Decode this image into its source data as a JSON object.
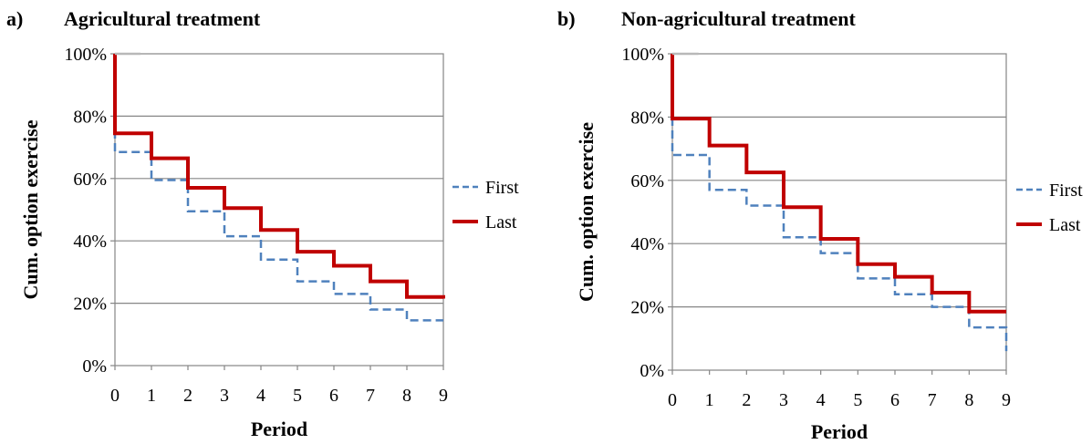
{
  "chart_data": [
    {
      "type": "line",
      "step": true,
      "panel_label": "a)",
      "title": "Agricultural treatment",
      "xlabel": "Period",
      "ylabel": "Cum. option exercise",
      "x": [
        0,
        1,
        2,
        3,
        4,
        5,
        6,
        7,
        8,
        9
      ],
      "x_tick_labels": [
        "0",
        "1",
        "2",
        "3",
        "4",
        "5",
        "6",
        "7",
        "8",
        "9"
      ],
      "y_tick_labels": [
        "0%",
        "20%",
        "40%",
        "60%",
        "80%",
        "100%"
      ],
      "ylim": [
        0,
        100
      ],
      "xlim": [
        0,
        9
      ],
      "grid": true,
      "legend_position": "right",
      "series": [
        {
          "name": "First",
          "style": "dashed",
          "color": "#4F81BD",
          "values": [
            68.5,
            59.5,
            49.5,
            41.5,
            34,
            27,
            23,
            18,
            14.5,
            14.5
          ]
        },
        {
          "name": "Last",
          "style": "solid",
          "color": "#C00000",
          "values": [
            74.5,
            66.5,
            57,
            50.5,
            43.5,
            36.5,
            32,
            27,
            22,
            21.5
          ]
        }
      ]
    },
    {
      "type": "line",
      "step": true,
      "panel_label": "b)",
      "title": "Non-agricultural treatment",
      "xlabel": "Period",
      "ylabel": "Cum. option exercise",
      "x": [
        0,
        1,
        2,
        3,
        4,
        5,
        6,
        7,
        8,
        9
      ],
      "x_tick_labels": [
        "0",
        "1",
        "2",
        "3",
        "4",
        "5",
        "6",
        "7",
        "8",
        "9"
      ],
      "y_tick_labels": [
        "0%",
        "20%",
        "40%",
        "60%",
        "80%",
        "100%"
      ],
      "ylim": [
        0,
        100
      ],
      "xlim": [
        0,
        9
      ],
      "grid": true,
      "legend_position": "right",
      "series": [
        {
          "name": "First",
          "style": "dashed",
          "color": "#4F81BD",
          "values": [
            68,
            57,
            52,
            42,
            37,
            29,
            24,
            20,
            13.5,
            6
          ]
        },
        {
          "name": "Last",
          "style": "solid",
          "color": "#C00000",
          "values": [
            79.5,
            71,
            62.5,
            51.5,
            41.5,
            33.5,
            29.5,
            24.5,
            18.5,
            18.5
          ]
        }
      ]
    }
  ]
}
